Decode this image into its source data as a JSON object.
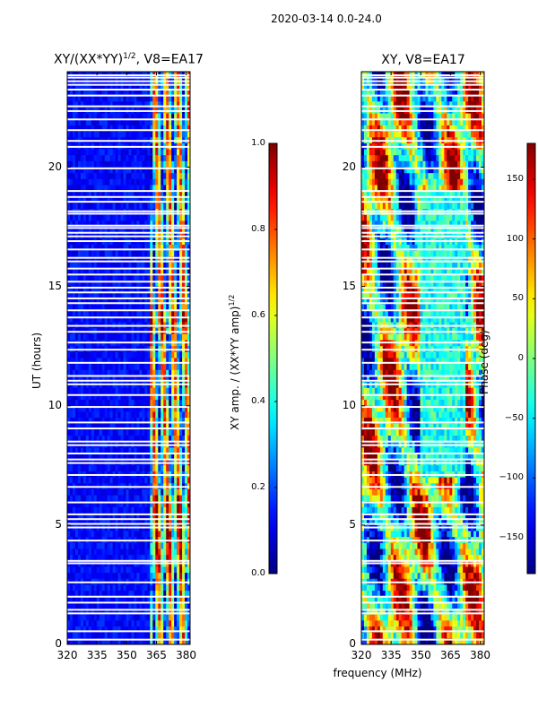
{
  "suptitle": "2020-03-14 0.0-24.0",
  "chart_data": [
    {
      "type": "heatmap",
      "title": "XY/(XX*YY)^1/2, V8=EA17",
      "title_main": "XY/(XX*YY)",
      "title_sup": "1/2",
      "title_rest": ", V8=EA17",
      "xlabel": "",
      "ylabel": "UT (hours)",
      "xlim": [
        320,
        382
      ],
      "ylim": [
        0,
        24
      ],
      "xticks": [
        "320",
        "335",
        "350",
        "365",
        "380"
      ],
      "xtick_values": [
        320,
        335,
        350,
        365,
        380
      ],
      "yticks": [
        "0",
        "5",
        "10",
        "15",
        "20"
      ],
      "ytick_values": [
        0,
        5,
        10,
        15,
        20
      ],
      "colorbar": {
        "label": "XY amp. / (XX*YY amp)^1/2",
        "label_main": "XY amp. / (XX*YY amp)",
        "label_sup": "1/2",
        "min": 0.0,
        "max": 1.0,
        "ticks": [
          "0.0",
          "0.2",
          "0.4",
          "0.6",
          "0.8",
          "1.0"
        ],
        "tick_values": [
          0.0,
          0.2,
          0.4,
          0.6,
          0.8,
          1.0
        ]
      }
    },
    {
      "type": "heatmap",
      "title": "XY, V8=EA17",
      "xlabel": "frequency (MHz)",
      "ylabel": "",
      "xlim": [
        320,
        382
      ],
      "ylim": [
        0,
        24
      ],
      "xticks": [
        "320",
        "335",
        "350",
        "365",
        "380"
      ],
      "xtick_values": [
        320,
        335,
        350,
        365,
        380
      ],
      "yticks": [
        "0",
        "5",
        "10",
        "15",
        "20"
      ],
      "ytick_values": [
        0,
        5,
        10,
        15,
        20
      ],
      "colorbar": {
        "label": "Phase (deg)",
        "min": -180,
        "max": 180,
        "ticks": [
          "−150",
          "−100",
          "−50",
          "0",
          "50",
          "100",
          "150"
        ],
        "tick_values": [
          -150,
          -100,
          -50,
          0,
          50,
          100,
          150
        ]
      }
    }
  ],
  "flagged_hours": [
    0.2,
    0.55,
    1.3,
    1.45,
    1.75,
    2.0,
    2.6,
    3.4,
    3.5,
    4.35,
    4.9,
    5.05,
    5.25,
    5.45,
    5.95,
    6.6,
    7.1,
    7.6,
    7.75,
    8.0,
    8.35,
    8.5,
    9.05,
    9.3,
    9.95,
    10.45,
    10.9,
    11.05,
    11.25,
    11.8,
    12.35,
    12.65,
    13.1,
    13.35,
    13.7,
    14.0,
    14.3,
    14.5,
    14.75,
    14.95,
    15.2,
    15.5,
    15.75,
    16.05,
    16.2,
    16.55,
    16.9,
    17.1,
    17.25,
    17.45,
    17.55,
    18.05,
    18.15,
    18.55,
    18.75,
    19.0,
    19.95,
    20.85,
    21.1,
    21.55,
    22.0,
    22.35,
    22.55,
    23.0,
    23.25,
    23.45,
    23.6,
    23.75,
    23.85
  ]
}
